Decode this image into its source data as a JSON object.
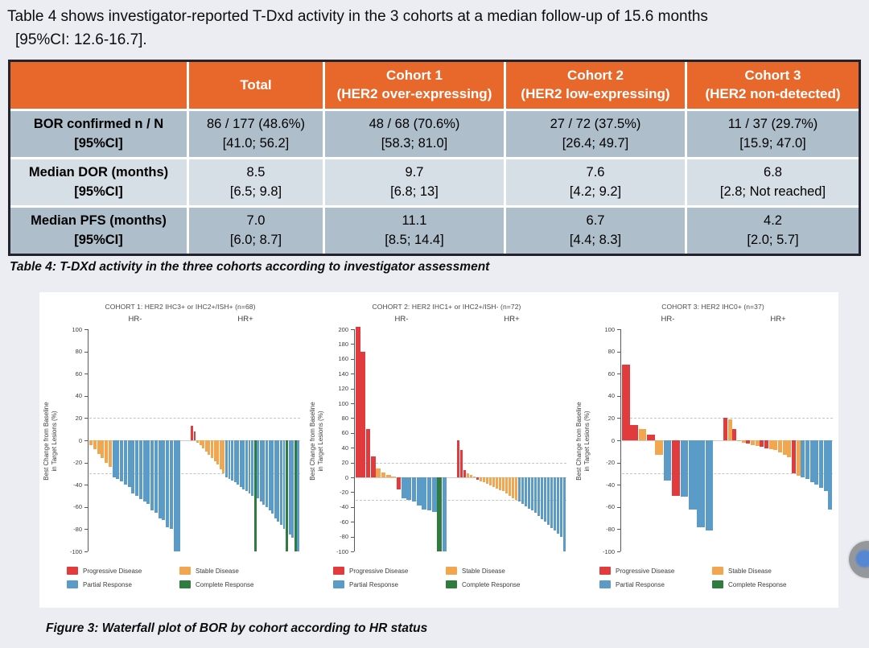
{
  "intro": {
    "line1": "Table 4 shows investigator-reported T-Dxd activity in the 3 cohorts at a median follow-up of 15.6 months",
    "line2": "[95%CI: 12.6-16.7]."
  },
  "table": {
    "header": [
      {
        "line1": "",
        "line2": ""
      },
      {
        "line1": "Total",
        "line2": ""
      },
      {
        "line1": "Cohort 1",
        "line2": "(HER2 over-expressing)"
      },
      {
        "line1": "Cohort 2",
        "line2": "(HER2 low-expressing)"
      },
      {
        "line1": "Cohort 3",
        "line2": "(HER2 non-detected)"
      }
    ],
    "rows": [
      {
        "label": "BOR confirmed n / N",
        "sublabel": "[95%CI]",
        "values": [
          "86 / 177 (48.6%)",
          "48 / 68 (70.6%)",
          "27 / 72 (37.5%)",
          "11 / 37 (29.7%)"
        ],
        "ci": [
          "[41.0; 56.2]",
          "[58.3; 81.0]",
          "[26.4; 49.7]",
          "[15.9; 47.0]"
        ]
      },
      {
        "label": "Median DOR (months)",
        "sublabel": "[95%CI]",
        "values": [
          "8.5",
          "9.7",
          "7.6",
          "6.8"
        ],
        "ci": [
          "[6.5; 9.8]",
          "[6.8; 13]",
          "[4.2; 9.2]",
          "[2.8; Not reached]"
        ]
      },
      {
        "label": "Median PFS (months)",
        "sublabel": "[95%CI]",
        "values": [
          "7.0",
          "11.1",
          "6.7",
          "4.2"
        ],
        "ci": [
          "[6.0; 8.7]",
          "[8.5; 14.4]",
          "[4.4; 8.3]",
          "[2.0; 5.7]"
        ]
      }
    ],
    "caption": "Table 4: T-DXd activity in the three cohorts according to investigator assessment",
    "header_bg": "#E8682B",
    "row_dark": "#AEBECB",
    "row_light": "#D7DFE6"
  },
  "figure": {
    "caption": "Figure 3: Waterfall plot of BOR by cohort according to HR status"
  },
  "chart_data": {
    "type": "bar",
    "subtype": "waterfall",
    "ylabel": "Best Change from Baseline in Target Lesions (%)",
    "ylabel_lines": [
      "Best Change from Baseline",
      "in Target Lesions (%)"
    ],
    "ytick_step": 20,
    "reference_lines": [
      20,
      -30
    ],
    "grid": false,
    "legend_position": "bottom",
    "colors": {
      "PD": "#E23B3E",
      "SD": "#F1A64F",
      "PR": "#5B9BC8",
      "CR": "#2E7D3E"
    },
    "legend": [
      {
        "key": "PD",
        "label": "Progressive Disease"
      },
      {
        "key": "SD",
        "label": "Stable Disease"
      },
      {
        "key": "PR",
        "label": "Partial Response"
      },
      {
        "key": "CR",
        "label": "Complete Response"
      }
    ],
    "panels": [
      {
        "title": "COHORT 1: HER2 IHC3+ or IHC2+/ISH+ (n=68)",
        "ymax": 100,
        "ymin": -100,
        "groups": [
          {
            "label": "HR-",
            "bars": [
              [
                -4,
                "SD"
              ],
              [
                -8,
                "SD"
              ],
              [
                -12,
                "SD"
              ],
              [
                -16,
                "SD"
              ],
              [
                -20,
                "SD"
              ],
              [
                -24,
                "SD"
              ],
              [
                -33,
                "PR"
              ],
              [
                -35,
                "PR"
              ],
              [
                -37,
                "PR"
              ],
              [
                -40,
                "PR"
              ],
              [
                -42,
                "PR"
              ],
              [
                -48,
                "PR"
              ],
              [
                -50,
                "PR"
              ],
              [
                -53,
                "PR"
              ],
              [
                -55,
                "PR"
              ],
              [
                -57,
                "PR"
              ],
              [
                -63,
                "PR"
              ],
              [
                -65,
                "PR"
              ],
              [
                -70,
                "PR"
              ],
              [
                -72,
                "PR"
              ],
              [
                -78,
                "PR"
              ],
              [
                -80,
                "PR"
              ],
              [
                -100,
                "PR"
              ],
              [
                -100,
                "PR"
              ]
            ]
          },
          {
            "label": "HR+",
            "bars": [
              [
                13,
                "PD"
              ],
              [
                8,
                "PD"
              ],
              [
                -2,
                "SD"
              ],
              [
                -4,
                "SD"
              ],
              [
                -7,
                "SD"
              ],
              [
                -10,
                "SD"
              ],
              [
                -13,
                "SD"
              ],
              [
                -16,
                "SD"
              ],
              [
                -19,
                "SD"
              ],
              [
                -22,
                "SD"
              ],
              [
                -26,
                "SD"
              ],
              [
                -30,
                "SD"
              ],
              [
                -33,
                "PR"
              ],
              [
                -35,
                "PR"
              ],
              [
                -36,
                "PR"
              ],
              [
                -38,
                "PR"
              ],
              [
                -40,
                "PR"
              ],
              [
                -42,
                "PR"
              ],
              [
                -44,
                "PR"
              ],
              [
                -46,
                "PR"
              ],
              [
                -48,
                "PR"
              ],
              [
                -50,
                "PR"
              ],
              [
                -100,
                "CR"
              ],
              [
                -52,
                "PR"
              ],
              [
                -55,
                "PR"
              ],
              [
                -58,
                "PR"
              ],
              [
                -60,
                "PR"
              ],
              [
                -63,
                "PR"
              ],
              [
                -66,
                "PR"
              ],
              [
                -70,
                "PR"
              ],
              [
                -73,
                "PR"
              ],
              [
                -76,
                "PR"
              ],
              [
                -80,
                "PR"
              ],
              [
                -100,
                "CR"
              ],
              [
                -85,
                "PR"
              ],
              [
                -88,
                "PR"
              ],
              [
                -100,
                "CR"
              ],
              [
                -100,
                "PR"
              ]
            ]
          }
        ]
      },
      {
        "title": "COHORT 2: HER2 IHC1+ or IHC2+/ISH- (n=72)",
        "ymax": 200,
        "ymin": -100,
        "groups": [
          {
            "label": "HR-",
            "bars": [
              [
                203,
                "PD"
              ],
              [
                170,
                "PD"
              ],
              [
                65,
                "PD"
              ],
              [
                28,
                "PD"
              ],
              [
                12,
                "SD"
              ],
              [
                6,
                "SD"
              ],
              [
                3,
                "SD"
              ],
              [
                1,
                "SD"
              ],
              [
                -16,
                "PD"
              ],
              [
                -28,
                "PR"
              ],
              [
                -30,
                "PR"
              ],
              [
                -33,
                "PR"
              ],
              [
                -38,
                "PR"
              ],
              [
                -43,
                "PR"
              ],
              [
                -45,
                "PR"
              ],
              [
                -47,
                "PR"
              ],
              [
                -100,
                "CR"
              ],
              [
                -100,
                "PR"
              ]
            ]
          },
          {
            "label": "HR+",
            "bars": [
              [
                50,
                "PD"
              ],
              [
                37,
                "PD"
              ],
              [
                10,
                "PD"
              ],
              [
                5,
                "SD"
              ],
              [
                3,
                "SD"
              ],
              [
                1,
                "SD"
              ],
              [
                -3,
                "PD"
              ],
              [
                -5,
                "SD"
              ],
              [
                -7,
                "SD"
              ],
              [
                -9,
                "SD"
              ],
              [
                -11,
                "SD"
              ],
              [
                -13,
                "SD"
              ],
              [
                -15,
                "SD"
              ],
              [
                -17,
                "SD"
              ],
              [
                -19,
                "SD"
              ],
              [
                -22,
                "SD"
              ],
              [
                -25,
                "SD"
              ],
              [
                -28,
                "SD"
              ],
              [
                -30,
                "SD"
              ],
              [
                -33,
                "PR"
              ],
              [
                -36,
                "PR"
              ],
              [
                -39,
                "PR"
              ],
              [
                -42,
                "PR"
              ],
              [
                -45,
                "PR"
              ],
              [
                -48,
                "PR"
              ],
              [
                -52,
                "PR"
              ],
              [
                -56,
                "PR"
              ],
              [
                -60,
                "PR"
              ],
              [
                -64,
                "PR"
              ],
              [
                -68,
                "PR"
              ],
              [
                -72,
                "PR"
              ],
              [
                -76,
                "PR"
              ],
              [
                -80,
                "PR"
              ],
              [
                -100,
                "PR"
              ]
            ]
          }
        ]
      },
      {
        "title": "COHORT 3: HER2 IHC0+ (n=37)",
        "ymax": 100,
        "ymin": -100,
        "groups": [
          {
            "label": "HR-",
            "bars": [
              [
                68,
                "PD"
              ],
              [
                14,
                "PD"
              ],
              [
                10,
                "SD"
              ],
              [
                5,
                "PD"
              ],
              [
                -13,
                "SD"
              ],
              [
                -36,
                "PR"
              ],
              [
                -50,
                "PD"
              ],
              [
                -51,
                "PR"
              ],
              [
                -62,
                "PR"
              ],
              [
                -78,
                "PR"
              ],
              [
                -81,
                "PR"
              ]
            ]
          },
          {
            "label": "HR+",
            "bars": [
              [
                20,
                "PD"
              ],
              [
                19,
                "SD"
              ],
              [
                10,
                "PD"
              ],
              [
                -1,
                "SD"
              ],
              [
                -2,
                "SD"
              ],
              [
                -3,
                "PD"
              ],
              [
                -4,
                "SD"
              ],
              [
                -5,
                "SD"
              ],
              [
                -6,
                "PD"
              ],
              [
                -7,
                "PD"
              ],
              [
                -8,
                "SD"
              ],
              [
                -9,
                "SD"
              ],
              [
                -11,
                "SD"
              ],
              [
                -13,
                "SD"
              ],
              [
                -15,
                "SD"
              ],
              [
                -30,
                "PD"
              ],
              [
                -32,
                "SD"
              ],
              [
                -33,
                "PR"
              ],
              [
                -35,
                "PR"
              ],
              [
                -38,
                "PR"
              ],
              [
                -40,
                "PR"
              ],
              [
                -43,
                "PR"
              ],
              [
                -46,
                "PR"
              ],
              [
                -62,
                "PR"
              ]
            ]
          }
        ]
      }
    ]
  },
  "floating_widget": {
    "color": "#8D9094",
    "accent": "#4A7FD1"
  }
}
